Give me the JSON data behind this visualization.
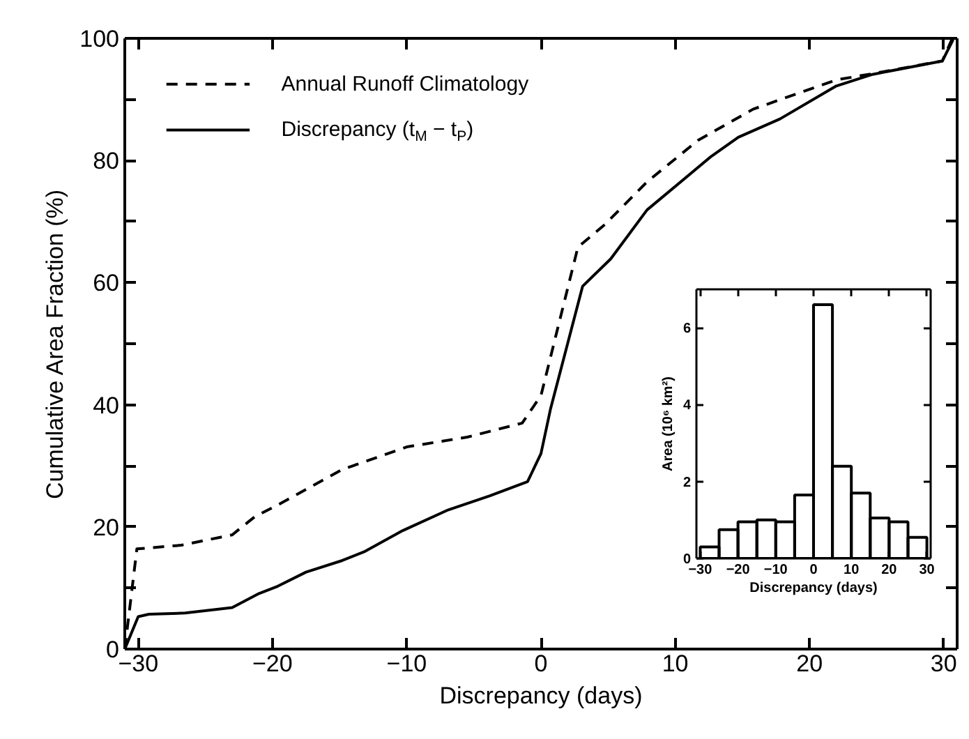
{
  "chart_data": [
    {
      "type": "line",
      "xlabel": "Discrepancy (days)",
      "ylabel": "Cumulative Area Fraction (%)",
      "xlim": [
        -31,
        31
      ],
      "xticks": [
        -30,
        -20,
        -10,
        0,
        10,
        20,
        30
      ],
      "ylim": [
        0,
        100
      ],
      "yticks": [
        0,
        {
          "value": 10,
          "label": null
        },
        20,
        {
          "value": 30,
          "label": null
        },
        40,
        {
          "value": 50,
          "label": null
        },
        60,
        {
          "value": 70,
          "label": null
        },
        80,
        {
          "value": 90,
          "label": null
        },
        100
      ],
      "legend": "top left",
      "series": [
        {
          "name": "Annual Runoff Climatology",
          "color": "#000000",
          "line_style": "dashed",
          "x": [
            -31,
            -30.1,
            -26.8,
            -23.0,
            -21.3,
            -19.6,
            -14.8,
            -10.0,
            -5.5,
            -1.4,
            0,
            2.75,
            4.8,
            7.9,
            11.7,
            15.8,
            22.0,
            24.4,
            29.9,
            30.6
          ],
          "values": [
            0,
            16.4,
            17.0,
            18.7,
            21.7,
            23.6,
            29.4,
            33.1,
            34.7,
            37.0,
            41.5,
            65.8,
            69.6,
            76.5,
            83.3,
            88.4,
            93.2,
            94.1,
            96.3,
            99.8
          ]
        },
        {
          "name": "Discrepancy (t$_{M}$ − t$_{P}$)",
          "color": "#000000",
          "line_style": "solid",
          "x": [
            -31,
            -30.0,
            -29.2,
            -26.5,
            -23.0,
            -21.0,
            -19.6,
            -17.5,
            -14.8,
            -13.1,
            -10.3,
            -6.9,
            -3.8,
            -1.0,
            0,
            0.7,
            3.1,
            5.2,
            7.9,
            12.7,
            14.7,
            17.8,
            22.0,
            24.7,
            29.9,
            30.7
          ],
          "values": [
            0,
            5.3,
            5.7,
            5.9,
            6.8,
            9.1,
            10.3,
            12.6,
            14.5,
            16.0,
            19.4,
            22.8,
            25.1,
            27.4,
            32.0,
            39.2,
            59.4,
            63.9,
            71.9,
            80.7,
            83.8,
            86.8,
            92.2,
            94.1,
            96.3,
            99.8
          ]
        }
      ]
    },
    {
      "type": "histogram",
      "xlabel": "Discrepancy (days)",
      "ylabel": "Area (10⁶ km²)",
      "color": "#000000",
      "bins": [
        -30,
        -25,
        -20,
        -15,
        -10,
        -5,
        0,
        5,
        10,
        15,
        20,
        25,
        30
      ],
      "values": [
        0.3,
        0.75,
        0.95,
        1.0,
        0.95,
        1.65,
        6.6,
        2.4,
        1.7,
        1.05,
        0.95,
        0.55
      ],
      "xlim": [
        -31,
        31
      ],
      "xticks": [
        -30,
        -20,
        -10,
        0,
        10,
        20,
        30
      ],
      "ylim": [
        0,
        7
      ],
      "yticks": [
        0,
        2,
        4,
        6
      ]
    }
  ]
}
